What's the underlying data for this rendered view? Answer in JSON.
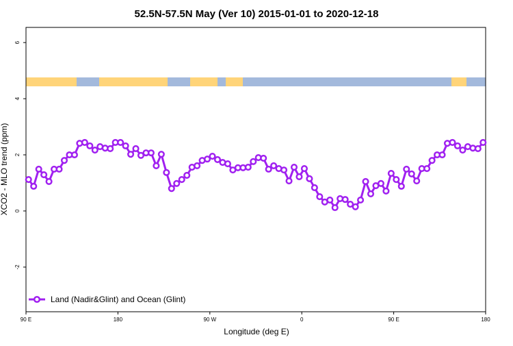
{
  "chart_data": {
    "type": "line",
    "title": "52.5N-57.5N May (Ver 10)   2015-01-01 to 2020-12-18",
    "x_label": "Longitude (deg E)",
    "y_label": "XCO2 - MLO trend (ppm)",
    "xlim": [
      90,
      540
    ],
    "ylim": [
      -3.59,
      6.54
    ],
    "xticks": [
      {
        "value": 90,
        "label": "90 E"
      },
      {
        "value": 180,
        "label": "180"
      },
      {
        "value": 270,
        "label": "90 W"
      },
      {
        "value": 360,
        "label": "0"
      },
      {
        "value": 450,
        "label": "90 E"
      },
      {
        "value": 540,
        "label": "180"
      }
    ],
    "yticks": [
      -2,
      0,
      2,
      4,
      6
    ],
    "legend": "bottom-left",
    "x": [
      92.5,
      97.5,
      102.5,
      107.5,
      112.5,
      117.5,
      122.5,
      127.5,
      132.5,
      137.5,
      142.5,
      147.5,
      152.5,
      157.5,
      162.5,
      167.5,
      172.5,
      177.5,
      182.5,
      187.5,
      192.5,
      197.5,
      202.5,
      207.5,
      212.5,
      217.5,
      222.5,
      227.5,
      232.5,
      237.5,
      242.5,
      247.5,
      252.5,
      257.5,
      262.5,
      267.5,
      272.5,
      277.5,
      282.5,
      287.5,
      292.5,
      297.5,
      302.5,
      307.5,
      312.5,
      317.5,
      322.5,
      327.5,
      332.5,
      337.5,
      342.5,
      347.5,
      352.5,
      357.5,
      362.5,
      367.5,
      372.5,
      377.5,
      382.5,
      387.5,
      392.5,
      397.5,
      402.5,
      407.5,
      412.5,
      417.5,
      422.5,
      427.5,
      432.5,
      437.5,
      442.5,
      447.5,
      452.5,
      457.5,
      462.5,
      467.5,
      472.5,
      477.5,
      482.5,
      487.5,
      492.5,
      497.5,
      502.5,
      507.5,
      512.5,
      517.5,
      522.5,
      527.5,
      532.5,
      537.5
    ],
    "series": [
      {
        "name": "Land (Nadir&Glint) and Ocean (Glint)",
        "color": "#a020f0",
        "values": [
          1.12,
          0.88,
          1.49,
          1.29,
          1.05,
          1.49,
          1.49,
          1.8,
          2.0,
          2.0,
          2.41,
          2.44,
          2.32,
          2.17,
          2.29,
          2.24,
          2.22,
          2.44,
          2.44,
          2.32,
          2.02,
          2.22,
          1.98,
          2.07,
          2.07,
          1.61,
          2.02,
          1.37,
          0.8,
          0.98,
          1.12,
          1.27,
          1.56,
          1.61,
          1.8,
          1.85,
          1.95,
          1.83,
          1.73,
          1.68,
          1.46,
          1.54,
          1.54,
          1.56,
          1.76,
          1.9,
          1.88,
          1.49,
          1.61,
          1.51,
          1.46,
          1.07,
          1.56,
          1.22,
          1.51,
          1.15,
          0.83,
          0.51,
          0.32,
          0.39,
          0.12,
          0.44,
          0.41,
          0.24,
          0.15,
          0.39,
          1.05,
          0.61,
          0.9,
          0.98,
          0.71,
          1.34,
          1.12,
          0.88,
          1.49,
          1.32,
          1.07,
          1.51,
          1.51,
          1.8,
          2.0,
          2.0,
          2.41,
          2.44,
          2.32,
          2.17,
          2.29,
          2.24,
          2.22,
          2.44
        ]
      }
    ]
  }
}
